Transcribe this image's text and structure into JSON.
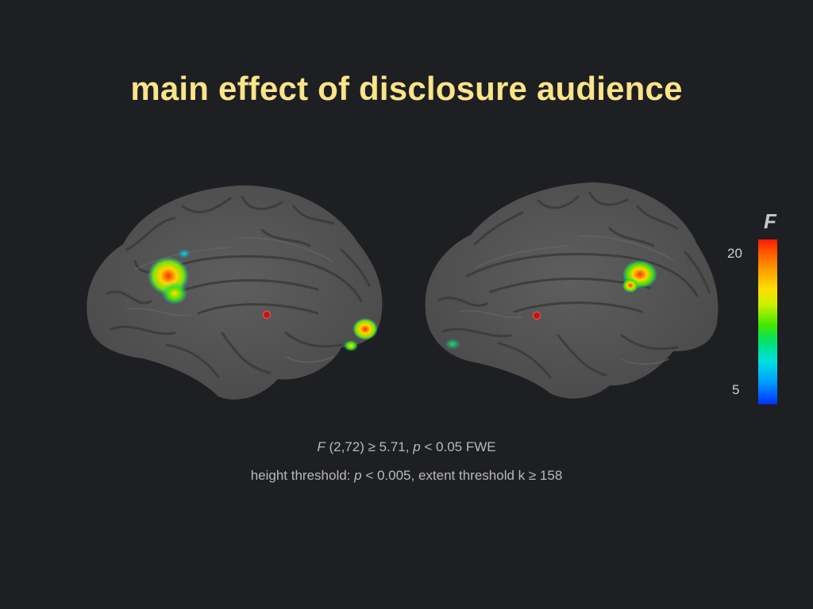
{
  "slide": {
    "title": "main effect of disclosure audience"
  },
  "colorbar": {
    "label": "F",
    "max_label": "20",
    "min_label": "5",
    "colors": [
      "#ff1a00",
      "#ffe000",
      "#40e800",
      "#00e0e0",
      "#0030ff"
    ]
  },
  "caption": {
    "line1": {
      "stat_symbol": "F",
      "stat_text": " (2,72) ≥ 5.71, ",
      "p_symbol": "p",
      "p_text": " < 0.05 FWE"
    },
    "line2": {
      "prefix": "height threshold: ",
      "p_symbol": "p",
      "rest": " < 0.005,  extent threshold k ≥ 158"
    }
  },
  "brains": {
    "surface_color": "#565656",
    "marker_color": "#cc1111"
  }
}
